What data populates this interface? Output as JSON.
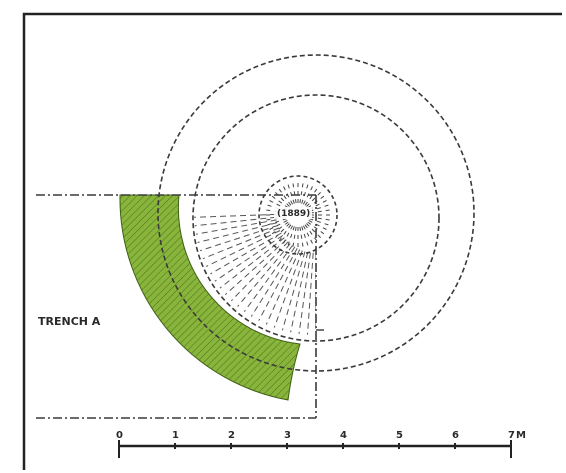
{
  "figure": {
    "trench_label": "TRENCH A",
    "center_label": "(1889)"
  },
  "scale_bar": {
    "ticks": [
      "0",
      "1",
      "2",
      "3",
      "4",
      "5",
      "6",
      "7"
    ],
    "unit": "M"
  },
  "colors": {
    "frame": "#222222",
    "line": "#3a3a3a",
    "hatch_fill": "#8ab53c",
    "hatch_line": "#4f7a1c",
    "background": "#ffffff"
  }
}
